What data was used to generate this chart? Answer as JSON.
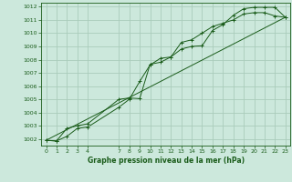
{
  "title": "Graphe pression niveau de la mer (hPa)",
  "bg_color": "#cce8dc",
  "grid_color": "#aaccbb",
  "line_color": "#1a5c1a",
  "xlim": [
    -0.5,
    23.5
  ],
  "ylim": [
    1001.5,
    1012.3
  ],
  "yticks": [
    1002,
    1003,
    1004,
    1005,
    1006,
    1007,
    1008,
    1009,
    1010,
    1011,
    1012
  ],
  "xticks": [
    0,
    1,
    2,
    3,
    4,
    7,
    8,
    9,
    10,
    11,
    12,
    13,
    14,
    15,
    16,
    17,
    18,
    19,
    20,
    21,
    22,
    23
  ],
  "series1_x": [
    0,
    1,
    2,
    3,
    4,
    7,
    8,
    9,
    10,
    11,
    12,
    13,
    14,
    15,
    16,
    17,
    18,
    19,
    20,
    21,
    22,
    23
  ],
  "series1_y": [
    1001.9,
    1001.85,
    1002.2,
    1002.8,
    1002.9,
    1004.4,
    1005.0,
    1006.35,
    1007.6,
    1008.1,
    1008.2,
    1009.3,
    1009.5,
    1010.0,
    1010.5,
    1010.75,
    1011.0,
    1011.45,
    1011.55,
    1011.55,
    1011.3,
    1011.2
  ],
  "series2_x": [
    0,
    1,
    2,
    3,
    4,
    7,
    8,
    9,
    10,
    11,
    12,
    13,
    14,
    15,
    16,
    17,
    18,
    19,
    20,
    21,
    22,
    23
  ],
  "series2_y": [
    1001.9,
    1001.85,
    1002.8,
    1003.0,
    1003.15,
    1005.0,
    1005.1,
    1005.05,
    1007.65,
    1007.8,
    1008.2,
    1008.8,
    1009.0,
    1009.05,
    1010.2,
    1010.65,
    1011.35,
    1011.85,
    1011.95,
    1011.95,
    1011.95,
    1011.2
  ],
  "series3_x": [
    0,
    23
  ],
  "series3_y": [
    1001.9,
    1011.2
  ]
}
